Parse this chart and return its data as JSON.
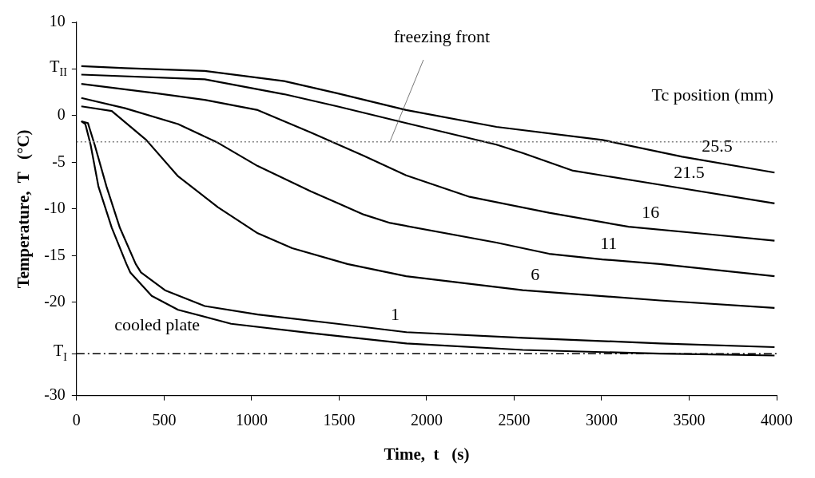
{
  "chart_data": {
    "type": "line",
    "xlabel": "Time,  t   (s)",
    "ylabel": "Temperature,  T   (°C)",
    "legend_title": "Tc position (mm)",
    "xlim": [
      0,
      4000
    ],
    "xticks": [
      0,
      500,
      1000,
      1500,
      2000,
      2500,
      3000,
      3500,
      4000
    ],
    "ylim": [
      -30,
      10
    ],
    "yticks": [
      10,
      {
        "value": 5,
        "label": "T$_{II}$"
      },
      0,
      -5,
      -10,
      -15,
      -20,
      {
        "value": -25.5,
        "label": "T$_{I}$"
      },
      -30
    ],
    "grid": false,
    "marker": "none",
    "line_style": "solid",
    "series": [
      {
        "name": "25.5",
        "color": "#000000",
        "x": [
          27,
          277,
          732,
          1186,
          1489,
          1883,
          2399,
          3004,
          3460,
          3988
        ],
        "values": [
          5.3,
          5.1,
          4.8,
          3.7,
          2.4,
          0.6,
          -1.2,
          -2.6,
          -4.4,
          -6.1
        ]
      },
      {
        "name": "21.5",
        "color": "#000000",
        "x": [
          27,
          732,
          1186,
          1489,
          1883,
          2399,
          2549,
          2837,
          3333,
          3988
        ],
        "values": [
          4.4,
          3.9,
          2.3,
          1.0,
          -0.8,
          -3.1,
          -4.0,
          -5.9,
          -7.4,
          -9.4
        ]
      },
      {
        "name": "16",
        "color": "#000000",
        "x": [
          27,
          455,
          732,
          1035,
          1338,
          1641,
          1883,
          2246,
          2700,
          3154,
          3610,
          3988
        ],
        "values": [
          3.4,
          2.4,
          1.7,
          0.6,
          -1.8,
          -4.3,
          -6.4,
          -8.7,
          -10.4,
          -11.9,
          -12.7,
          -13.4
        ]
      },
      {
        "name": "11",
        "color": "#000000",
        "x": [
          27,
          277,
          580,
          807,
          1035,
          1338,
          1641,
          1792,
          2399,
          2700,
          3004,
          3333,
          3988
        ],
        "values": [
          1.9,
          0.8,
          -0.9,
          -2.9,
          -5.4,
          -8.1,
          -10.6,
          -11.5,
          -13.6,
          -14.8,
          -15.4,
          -15.9,
          -17.2
        ]
      },
      {
        "name": "6",
        "color": "#000000",
        "x": [
          27,
          201,
          398,
          580,
          807,
          1035,
          1232,
          1548,
          1883,
          2549,
          3333,
          3988
        ],
        "values": [
          1.0,
          0.5,
          -2.6,
          -6.5,
          -9.8,
          -12.6,
          -14.2,
          -15.9,
          -17.2,
          -18.7,
          -19.8,
          -20.6
        ]
      },
      {
        "name": "1",
        "color": "#000000",
        "x": [
          27,
          65,
          103,
          171,
          247,
          338,
          368,
          505,
          732,
          1035,
          1489,
          1883,
          2549,
          3333,
          3988
        ],
        "values": [
          -0.6,
          -0.8,
          -3.1,
          -7.6,
          -12.0,
          -15.9,
          -16.8,
          -18.7,
          -20.4,
          -21.3,
          -22.3,
          -23.2,
          -23.8,
          -24.4,
          -24.8
        ]
      },
      {
        "name": "cooled plate",
        "color": "#000000",
        "x": [
          27,
          50,
          80,
          125,
          201,
          285,
          307,
          429,
          580,
          883,
          1338,
          1883,
          2549,
          3333,
          3988
        ],
        "values": [
          -0.6,
          -0.9,
          -3.1,
          -7.6,
          -12.0,
          -15.9,
          -16.8,
          -19.3,
          -20.8,
          -22.3,
          -23.3,
          -24.4,
          -25.1,
          -25.5,
          -25.7
        ]
      }
    ],
    "ref_lines": [
      {
        "axis": "y",
        "value": -2.8,
        "color": "#808080",
        "line_style": "dotted"
      },
      {
        "axis": "y",
        "value": -25.5,
        "color": "#000000",
        "line_style": "dashed"
      }
    ],
    "annotations": [
      {
        "text": "freezing front",
        "x": 1790,
        "y": -2.8
      }
    ]
  }
}
